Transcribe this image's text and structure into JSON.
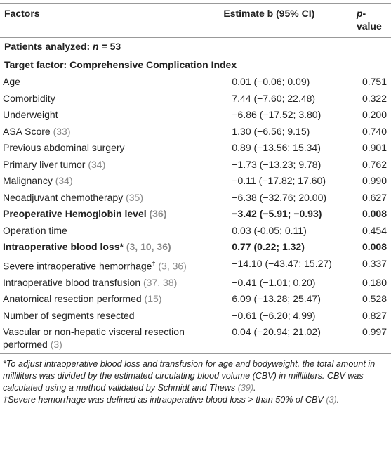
{
  "header": {
    "factors": "Factors",
    "estimate": "Estimate b (95% CI)",
    "p_italic": "p",
    "p_rest": "-value"
  },
  "patients": {
    "prefix": "Patients analyzed: ",
    "n": "n",
    "suffix": " = 53"
  },
  "target": "Target factor: Comprehensive Complication Index",
  "rows": [
    {
      "factor": "Age",
      "estimate": "0.01 (−0.06; 0.09)",
      "p": "0.751"
    },
    {
      "factor": "Comorbidity",
      "estimate": "7.44 (−7.60; 22.48)",
      "p": "0.322"
    },
    {
      "factor": "Underweight",
      "estimate": "−6.86 (−17.52; 3.80)",
      "p": "0.200"
    },
    {
      "factor": "ASA Score ",
      "ref": "(33)",
      "estimate": "1.30 (−6.56; 9.15)",
      "p": "0.740"
    },
    {
      "factor": "Previous abdominal surgery",
      "estimate": "0.89 (−13.56; 15.34)",
      "p": "0.901"
    },
    {
      "factor": "Primary liver tumor ",
      "ref": "(34)",
      "estimate": "−1.73 (−13.23; 9.78)",
      "p": "0.762"
    },
    {
      "factor": "Malignancy ",
      "ref": "(34)",
      "estimate": "−0.11 (−17.82; 17.60)",
      "p": "0.990"
    },
    {
      "factor": "Neoadjuvant chemotherapy ",
      "ref": "(35)",
      "estimate": "−6.38 (−32.76; 20.00)",
      "p": "0.627"
    },
    {
      "factor": "Preoperative Hemoglobin level ",
      "ref": "(36)",
      "estimate": "−3.42 (−5.91; −0.93)",
      "p": "0.008",
      "bold": true
    },
    {
      "factor": "Operation time",
      "estimate": "0.03 (-0.05; 0.11)",
      "p": "0.454"
    },
    {
      "factor": "Intraoperative blood loss* ",
      "ref": "(3, 10, 36)",
      "estimate": "0.77 (0.22; 1.32)",
      "p": "0.008",
      "bold": true
    },
    {
      "factor": "Severe intraoperative hemorrhage",
      "sup": "†",
      "ref": " (3, 36)",
      "estimate": "−14.10 (−43.47; 15.27)",
      "p": "0.337"
    },
    {
      "factor": "Intraoperative blood transfusion ",
      "ref": "(37, 38)",
      "estimate": "−0.41 (−1.01; 0.20)",
      "p": "0.180"
    },
    {
      "factor": "Anatomical resection performed ",
      "ref": "(15)",
      "estimate": "6.09 (−13.28; 25.47)",
      "p": "0.528"
    },
    {
      "factor": "Number of segments resected",
      "estimate": "−0.61 (−6.20; 4.99)",
      "p": "0.827"
    },
    {
      "factor": "Vascular or non-hepatic visceral resection performed ",
      "ref": "(3)",
      "estimate": "0.04 (−20.94; 21.02)",
      "p": "0.997"
    }
  ],
  "footnotes": [
    [
      {
        "text": "*To adjust intraoperative blood loss and transfusion for age and bodyweight, the total amount in milliliters was divided by the estimated circulating blood volume (CBV) in milliliters. CBV was calculated using a method validated by Schmidt and Thews "
      },
      {
        "text": "(39)",
        "ref": true
      },
      {
        "text": "."
      }
    ],
    [
      {
        "text": "†Severe hemorrhage was defined as intraoperative blood loss > than 50% of CBV "
      },
      {
        "text": "(3)",
        "ref": true
      },
      {
        "text": "."
      }
    ]
  ]
}
